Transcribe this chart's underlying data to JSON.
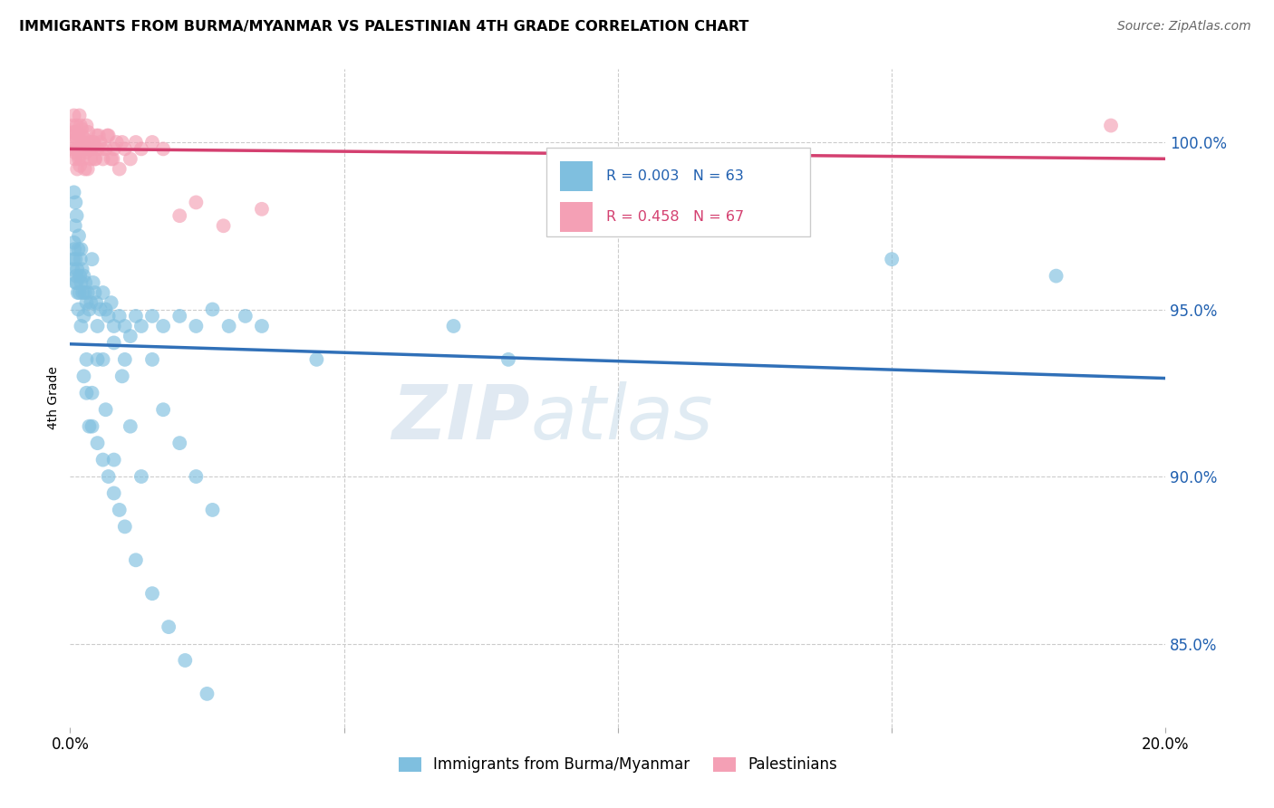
{
  "title": "IMMIGRANTS FROM BURMA/MYANMAR VS PALESTINIAN 4TH GRADE CORRELATION CHART",
  "source": "Source: ZipAtlas.com",
  "ylabel": "4th Grade",
  "y_ticks": [
    85.0,
    90.0,
    95.0,
    100.0
  ],
  "y_tick_labels": [
    "85.0%",
    "90.0%",
    "95.0%",
    "100.0%"
  ],
  "x_range": [
    0.0,
    20.0
  ],
  "y_range": [
    82.5,
    102.2
  ],
  "blue_R": "0.003",
  "blue_N": "63",
  "pink_R": "0.458",
  "pink_N": "67",
  "blue_color": "#7fbfdf",
  "pink_color": "#f4a0b5",
  "blue_line_color": "#3070b8",
  "pink_line_color": "#d44070",
  "legend_blue_label": "Immigrants from Burma/Myanmar",
  "legend_pink_label": "Palestinians",
  "watermark_zip": "ZIP",
  "watermark_atlas": "atlas",
  "blue_x": [
    0.05,
    0.07,
    0.08,
    0.09,
    0.1,
    0.11,
    0.12,
    0.13,
    0.14,
    0.15,
    0.16,
    0.17,
    0.18,
    0.19,
    0.2,
    0.22,
    0.23,
    0.25,
    0.27,
    0.28,
    0.3,
    0.32,
    0.35,
    0.38,
    0.4,
    0.42,
    0.45,
    0.48,
    0.5,
    0.55,
    0.6,
    0.65,
    0.7,
    0.75,
    0.8,
    0.9,
    1.0,
    1.1,
    1.2,
    1.3,
    1.5,
    1.7,
    2.0,
    2.3,
    2.6,
    2.9,
    3.2,
    0.06,
    0.1,
    0.15,
    0.2,
    0.25,
    0.3,
    0.4,
    0.6,
    0.8,
    1.0,
    3.5,
    4.5,
    7.0,
    8.0,
    15.0,
    18.0
  ],
  "blue_y": [
    96.2,
    97.0,
    96.8,
    97.5,
    96.5,
    96.0,
    95.8,
    96.2,
    95.5,
    96.8,
    97.2,
    95.5,
    96.0,
    96.5,
    95.8,
    96.2,
    95.5,
    96.0,
    95.5,
    95.8,
    95.2,
    95.5,
    95.0,
    95.2,
    96.5,
    95.8,
    95.5,
    95.2,
    94.5,
    95.0,
    95.5,
    95.0,
    94.8,
    95.2,
    94.5,
    94.8,
    94.5,
    94.2,
    94.8,
    94.5,
    94.8,
    94.5,
    94.8,
    94.5,
    95.0,
    94.5,
    94.8,
    96.5,
    95.8,
    95.0,
    94.5,
    93.0,
    92.5,
    91.5,
    93.5,
    94.0,
    93.5,
    94.5,
    93.5,
    94.5,
    93.5,
    96.5,
    96.0
  ],
  "blue_y_outliers": [
    98.5,
    98.2,
    97.8,
    96.8,
    94.8,
    93.5,
    92.5,
    91.0,
    90.5,
    90.0,
    89.5,
    89.0,
    88.5,
    87.5,
    86.5,
    85.5,
    84.5,
    83.5,
    91.5,
    93.5,
    92.0,
    90.5,
    93.0,
    91.5,
    90.0,
    93.5,
    92.0,
    91.0,
    90.0,
    89.0
  ],
  "blue_x_outliers": [
    0.07,
    0.1,
    0.12,
    0.2,
    0.25,
    0.3,
    0.4,
    0.5,
    0.6,
    0.7,
    0.8,
    0.9,
    1.0,
    1.2,
    1.5,
    1.8,
    2.1,
    2.5,
    0.35,
    0.5,
    0.65,
    0.8,
    0.95,
    1.1,
    1.3,
    1.5,
    1.7,
    2.0,
    2.3,
    2.6
  ],
  "pink_x": [
    0.04,
    0.05,
    0.06,
    0.07,
    0.08,
    0.09,
    0.1,
    0.11,
    0.12,
    0.13,
    0.14,
    0.15,
    0.16,
    0.17,
    0.18,
    0.19,
    0.2,
    0.22,
    0.23,
    0.25,
    0.27,
    0.28,
    0.3,
    0.32,
    0.35,
    0.38,
    0.4,
    0.42,
    0.45,
    0.48,
    0.5,
    0.55,
    0.6,
    0.65,
    0.7,
    0.75,
    0.8,
    0.85,
    0.9,
    0.95,
    1.0,
    1.1,
    1.2,
    1.3,
    1.5,
    1.7,
    2.0,
    2.3,
    2.8,
    3.5,
    0.06,
    0.09,
    0.13,
    0.16,
    0.21,
    0.24,
    0.26,
    0.29,
    0.33,
    0.36,
    0.43,
    0.46,
    0.52,
    0.58,
    0.68,
    0.78,
    19.0
  ],
  "pink_y": [
    99.8,
    100.5,
    100.2,
    100.8,
    100.0,
    99.5,
    100.3,
    99.8,
    100.5,
    99.2,
    99.8,
    100.2,
    99.5,
    100.8,
    99.3,
    100.5,
    99.8,
    100.2,
    99.5,
    100.0,
    99.2,
    99.8,
    100.5,
    99.2,
    100.0,
    99.5,
    99.8,
    100.0,
    99.5,
    100.2,
    99.8,
    100.0,
    99.5,
    99.8,
    100.2,
    99.5,
    99.8,
    100.0,
    99.2,
    100.0,
    99.8,
    99.5,
    100.0,
    99.8,
    100.0,
    99.8,
    97.8,
    98.2,
    97.5,
    98.0,
    100.3,
    99.7,
    100.1,
    99.6,
    100.4,
    99.9,
    100.1,
    99.7,
    100.3,
    99.8,
    100.0,
    99.5,
    100.2,
    99.8,
    100.2,
    99.5,
    100.5
  ]
}
